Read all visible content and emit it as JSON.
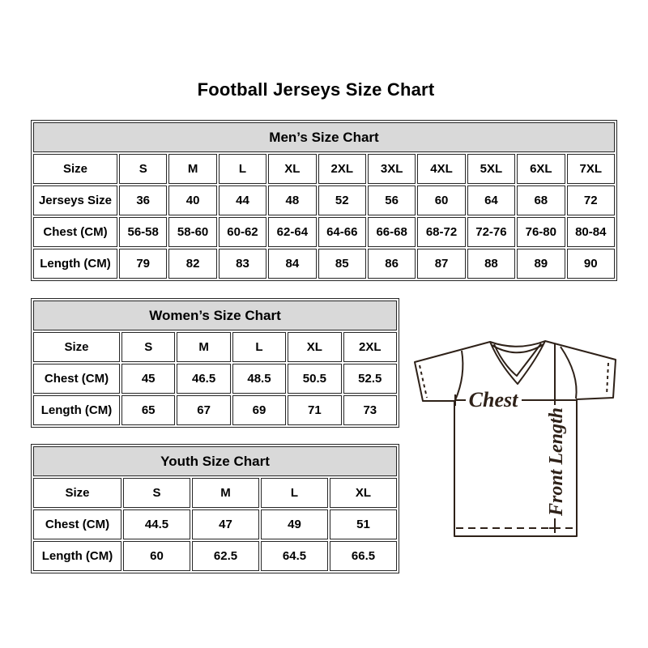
{
  "page_title": "Football Jerseys Size Chart",
  "chart_data": [
    {
      "type": "table",
      "title": "Men’s Size Chart",
      "rows": [
        [
          "Size",
          "S",
          "M",
          "L",
          "XL",
          "2XL",
          "3XL",
          "4XL",
          "5XL",
          "6XL",
          "7XL"
        ],
        [
          "Jerseys Size",
          "36",
          "40",
          "44",
          "48",
          "52",
          "56",
          "60",
          "64",
          "68",
          "72"
        ],
        [
          "Chest (CM)",
          "56-58",
          "58-60",
          "60-62",
          "62-64",
          "64-66",
          "66-68",
          "68-72",
          "72-76",
          "76-80",
          "80-84"
        ],
        [
          "Length (CM)",
          "79",
          "82",
          "83",
          "84",
          "85",
          "86",
          "87",
          "88",
          "89",
          "90"
        ]
      ]
    },
    {
      "type": "table",
      "title": "Women’s Size Chart",
      "rows": [
        [
          "Size",
          "S",
          "M",
          "L",
          "XL",
          "2XL"
        ],
        [
          "Chest (CM)",
          "45",
          "46.5",
          "48.5",
          "50.5",
          "52.5"
        ],
        [
          "Length (CM)",
          "65",
          "67",
          "69",
          "71",
          "73"
        ]
      ]
    },
    {
      "type": "table",
      "title": "Youth Size Chart",
      "rows": [
        [
          "Size",
          "S",
          "M",
          "L",
          "XL"
        ],
        [
          "Chest (CM)",
          "44.5",
          "47",
          "49",
          "51"
        ],
        [
          "Length (CM)",
          "60",
          "62.5",
          "64.5",
          "66.5"
        ]
      ]
    }
  ],
  "diagram": {
    "chest_label": "Chest",
    "front_length_label": "Front Length"
  },
  "colors": {
    "header_bg": "#d9d9d9",
    "table_border": "#262626",
    "jersey_line": "#2e2118",
    "text": "#000000",
    "background": "#ffffff"
  }
}
